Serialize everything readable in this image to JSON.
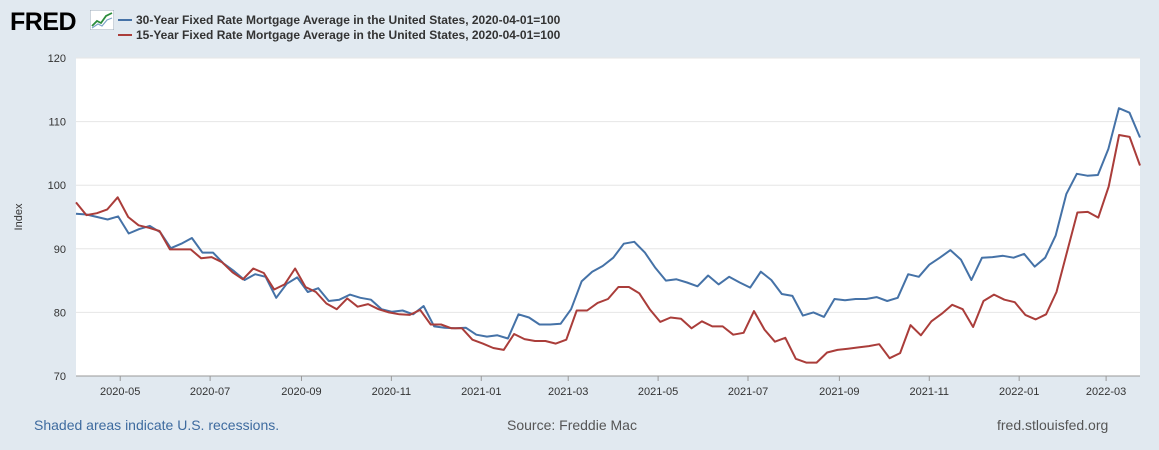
{
  "logo": {
    "text": "FRED"
  },
  "colors": {
    "series1": "#4572a7",
    "series2": "#aa3d3a",
    "grid": "#e6e6e6",
    "bg": "#e1e9f0"
  },
  "footer": {
    "recessions": "Shaded areas indicate U.S. recessions.",
    "source": "Source: Freddie Mac",
    "site": "fred.stlouisfed.org"
  },
  "chart_data": {
    "type": "line",
    "ylabel": "Index",
    "ylim": [
      70,
      120
    ],
    "yticks": [
      70,
      80,
      90,
      100,
      110,
      120
    ],
    "xticks": [
      "2020-05",
      "2020-07",
      "2020-09",
      "2020-11",
      "2021-01",
      "2021-03",
      "2021-05",
      "2021-07",
      "2021-09",
      "2021-11",
      "2022-01",
      "2022-03"
    ],
    "x_start": "2020-04-01",
    "x_end": "2022-03-24",
    "series": [
      {
        "name": "30-Year Fixed Rate Mortgage Average in the United States, 2020-04-01=100",
        "color": "#4572a7",
        "values": [
          95.5,
          95.4,
          95.0,
          94.6,
          95.1,
          92.4,
          93.1,
          93.6,
          92.6,
          90.1,
          90.8,
          91.7,
          89.4,
          89.4,
          87.7,
          86.5,
          85.1,
          86.0,
          85.6,
          82.3,
          84.5,
          85.5,
          83.2,
          83.8,
          81.8,
          82.0,
          82.8,
          82.3,
          82.0,
          80.5,
          80.1,
          80.3,
          79.7,
          81.0,
          77.8,
          77.6,
          77.5,
          77.6,
          76.5,
          76.2,
          76.4,
          75.9,
          79.7,
          79.2,
          78.1,
          78.1,
          78.2,
          80.5,
          84.9,
          86.4,
          87.3,
          88.6,
          90.8,
          91.1,
          89.4,
          87.0,
          85.0,
          85.2,
          84.7,
          84.1,
          85.8,
          84.4,
          85.6,
          84.7,
          83.9,
          86.4,
          85.1,
          82.9,
          82.6,
          79.5,
          80.0,
          79.3,
          82.1,
          81.9,
          82.1,
          82.1,
          82.4,
          81.8,
          82.3,
          86.0,
          85.6,
          87.5,
          88.6,
          89.8,
          88.3,
          85.1,
          88.6,
          88.7,
          88.9,
          88.6,
          89.2,
          87.2,
          88.6,
          92.1,
          98.6,
          101.8,
          101.5,
          101.6,
          105.7,
          112.1,
          111.4,
          107.5
        ]
      },
      {
        "name": "15-Year Fixed Rate Mortgage Average in the United States, 2020-04-01=100",
        "color": "#aa3d3a",
        "values": [
          97.3,
          95.3,
          95.6,
          96.2,
          98.1,
          95.0,
          93.7,
          93.3,
          92.8,
          89.9,
          89.9,
          89.9,
          88.5,
          88.7,
          87.9,
          86.3,
          85.2,
          86.9,
          86.2,
          83.6,
          84.4,
          86.9,
          84.0,
          83.2,
          81.4,
          80.5,
          82.2,
          80.9,
          81.3,
          80.5,
          80.0,
          79.7,
          79.6,
          80.4,
          78.1,
          78.1,
          77.5,
          77.5,
          75.7,
          75.1,
          74.4,
          74.1,
          76.6,
          75.8,
          75.5,
          75.5,
          75.1,
          75.7,
          80.3,
          80.3,
          81.5,
          82.1,
          84.0,
          84.0,
          83.0,
          80.5,
          78.5,
          79.2,
          79.0,
          77.5,
          78.6,
          77.8,
          77.8,
          76.5,
          76.8,
          80.2,
          77.3,
          75.4,
          76.0,
          72.7,
          72.1,
          72.1,
          73.7,
          74.1,
          74.3,
          74.5,
          74.7,
          75.0,
          72.8,
          73.6,
          78.0,
          76.4,
          78.6,
          79.8,
          81.2,
          80.5,
          77.7,
          81.8,
          82.8,
          82.0,
          81.6,
          79.6,
          78.9,
          79.7,
          83.2,
          89.5,
          95.7,
          95.8,
          94.9,
          99.8,
          107.9,
          107.6,
          103.1
        ]
      }
    ]
  }
}
